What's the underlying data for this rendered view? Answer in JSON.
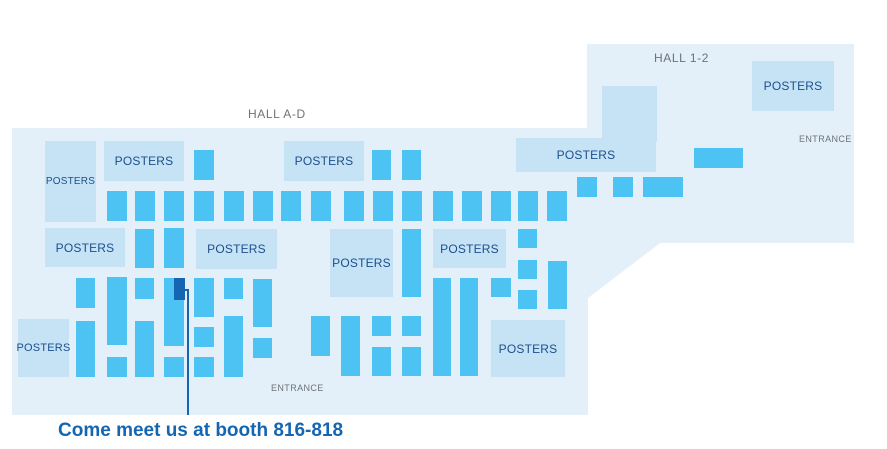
{
  "halls": {
    "main_title": "HALL A-D",
    "annex_title": "HALL 1-2"
  },
  "entrances": {
    "main": "ENTRANCE",
    "annex": "ENTRANCE"
  },
  "posters": {
    "p1": "POSTERS",
    "p2": "POSTERS",
    "p3": "POSTERS",
    "p4": "POSTERS",
    "p5": "POSTERS",
    "p6": "POSTERS",
    "p7": "POSTERS",
    "p8": "POSTERS",
    "p9": "POSTERS",
    "p10": "POSTERS",
    "p11": "POSTERS"
  },
  "callout": {
    "text": "Come meet us at booth 816-818"
  },
  "colors": {
    "hall_fill": "#e3eff9",
    "booth_fill": "#4dc3f3",
    "poster_fill": "#c6e3f6",
    "highlight_booth": "#1466b3",
    "callout_text": "#1466b3"
  }
}
